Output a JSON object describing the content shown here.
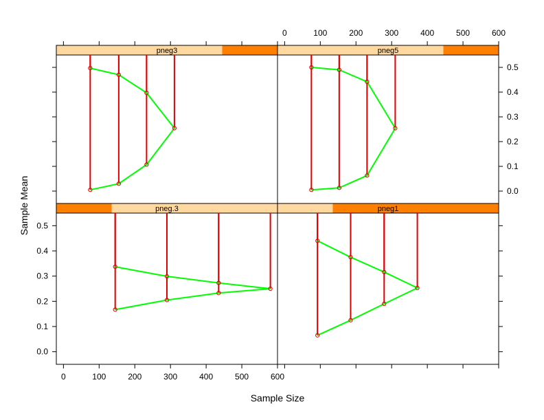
{
  "chart_data": {
    "type": "line",
    "xlabel": "Sample Size",
    "ylabel": "Sample Mean",
    "xlim": [
      -20,
      600
    ],
    "ylim": [
      -0.05,
      0.55
    ],
    "x_ticks": [
      0,
      100,
      200,
      300,
      400,
      500,
      600
    ],
    "y_ticks": [
      0.0,
      0.1,
      0.2,
      0.3,
      0.4,
      0.5
    ],
    "x_tick_labels": [
      "0",
      "100",
      "200",
      "300",
      "400",
      "500",
      "600"
    ],
    "y_tick_labels": [
      "0.0",
      "0.1",
      "0.2",
      "0.3",
      "0.4",
      "0.5"
    ],
    "colors": {
      "line": "#00ff00",
      "drop_line": "#e00000",
      "point": "#e00000",
      "strip_bg": "#ffd8a0",
      "strip_fill": "#ff8000"
    },
    "panels": [
      {
        "strip": "pneg3",
        "strip_range": [
          0.75,
          1.0
        ],
        "points": [
          {
            "x": 75,
            "y": 0.005
          },
          {
            "x": 155,
            "y": 0.03
          },
          {
            "x": 233,
            "y": 0.107
          },
          {
            "x": 311,
            "y": 0.254
          },
          {
            "x": 233,
            "y": 0.397
          },
          {
            "x": 155,
            "y": 0.47
          },
          {
            "x": 75,
            "y": 0.497
          }
        ]
      },
      {
        "strip": "pneg5",
        "strip_range": [
          0.75,
          1.0
        ],
        "points": [
          {
            "x": 75,
            "y": 0.005
          },
          {
            "x": 153,
            "y": 0.013
          },
          {
            "x": 231,
            "y": 0.063
          },
          {
            "x": 310,
            "y": 0.254
          },
          {
            "x": 231,
            "y": 0.442
          },
          {
            "x": 153,
            "y": 0.49
          },
          {
            "x": 75,
            "y": 0.5
          }
        ]
      },
      {
        "strip": "pneg.3",
        "strip_range": [
          0.0,
          0.25
        ],
        "points": [
          {
            "x": 145,
            "y": 0.167
          },
          {
            "x": 290,
            "y": 0.205
          },
          {
            "x": 435,
            "y": 0.233
          },
          {
            "x": 580,
            "y": 0.25
          },
          {
            "x": 435,
            "y": 0.273
          },
          {
            "x": 290,
            "y": 0.299
          },
          {
            "x": 145,
            "y": 0.337
          }
        ]
      },
      {
        "strip": "pneg1",
        "strip_range": [
          0.25,
          1.0
        ],
        "points": [
          {
            "x": 92,
            "y": 0.065
          },
          {
            "x": 185,
            "y": 0.125
          },
          {
            "x": 279,
            "y": 0.19
          },
          {
            "x": 372,
            "y": 0.253
          },
          {
            "x": 279,
            "y": 0.316
          },
          {
            "x": 185,
            "y": 0.375
          },
          {
            "x": 92,
            "y": 0.44
          }
        ]
      }
    ]
  }
}
